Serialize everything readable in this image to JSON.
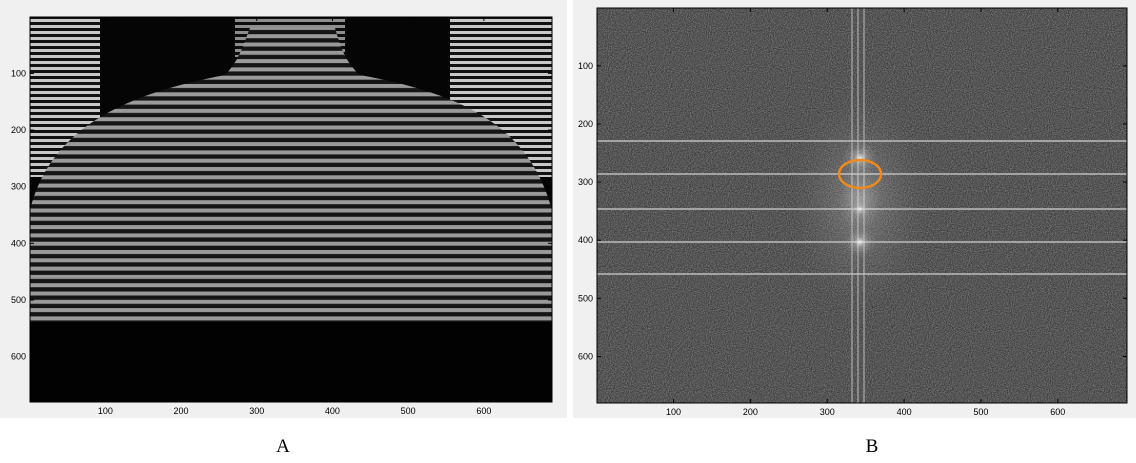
{
  "chart_data": [
    {
      "type": "image",
      "caption": "A",
      "xlim": [
        0.5,
        690
      ],
      "ylim": [
        0.5,
        680
      ],
      "xticks": [
        100,
        200,
        300,
        400,
        500,
        600
      ],
      "yticks": [
        100,
        200,
        300,
        400,
        500,
        600
      ]
    },
    {
      "type": "image",
      "caption": "B",
      "xlim": [
        0.5,
        690
      ],
      "ylim": [
        0.5,
        680
      ],
      "xticks": [
        100,
        200,
        300,
        400,
        500,
        600
      ],
      "yticks": [
        100,
        200,
        300,
        400,
        500,
        600
      ]
    }
  ]
}
